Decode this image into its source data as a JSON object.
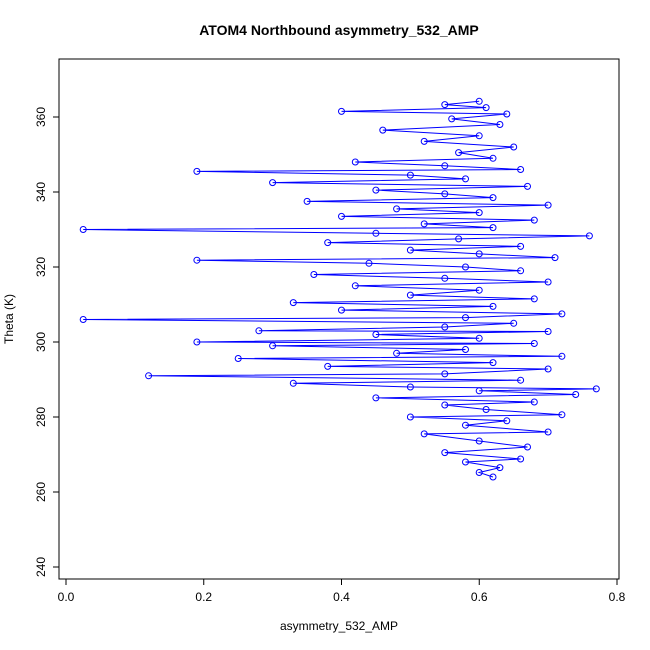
{
  "chart_data": {
    "type": "line",
    "title": "ATOM4 Northbound asymmetry_532_AMP",
    "xlabel": "asymmetry_532_AMP",
    "ylabel": "Theta (K)",
    "xlim": [
      0.0,
      0.8
    ],
    "ylim": [
      240,
      370
    ],
    "xticks": [
      0.0,
      0.2,
      0.4,
      0.6,
      0.8
    ],
    "yticks": [
      240,
      260,
      280,
      300,
      320,
      340,
      360
    ],
    "xtick_labels": [
      "0.0",
      "0.2",
      "0.4",
      "0.6",
      "0.8"
    ],
    "ytick_labels": [
      "240",
      "260",
      "280",
      "300",
      "320",
      "340",
      "360"
    ],
    "grid": false,
    "legend": "none",
    "series": [
      {
        "color": "#0000ff",
        "marker": "open-circle",
        "line": true,
        "points": [
          [
            0.62,
            264.0
          ],
          [
            0.6,
            265.2
          ],
          [
            0.63,
            266.5
          ],
          [
            0.58,
            268.0
          ],
          [
            0.66,
            268.8
          ],
          [
            0.55,
            270.5
          ],
          [
            0.67,
            272.0
          ],
          [
            0.6,
            273.6
          ],
          [
            0.52,
            275.5
          ],
          [
            0.7,
            276.0
          ],
          [
            0.58,
            277.8
          ],
          [
            0.64,
            279.0
          ],
          [
            0.5,
            280.0
          ],
          [
            0.72,
            280.6
          ],
          [
            0.61,
            282.0
          ],
          [
            0.55,
            283.2
          ],
          [
            0.68,
            284.0
          ],
          [
            0.45,
            285.1
          ],
          [
            0.74,
            286.0
          ],
          [
            0.6,
            287.0
          ],
          [
            0.77,
            287.5
          ],
          [
            0.5,
            288.0
          ],
          [
            0.33,
            289.0
          ],
          [
            0.66,
            289.8
          ],
          [
            0.12,
            291.0
          ],
          [
            0.55,
            291.5
          ],
          [
            0.7,
            292.8
          ],
          [
            0.38,
            293.5
          ],
          [
            0.62,
            294.5
          ],
          [
            0.25,
            295.6
          ],
          [
            0.72,
            296.2
          ],
          [
            0.48,
            297.0
          ],
          [
            0.58,
            298.0
          ],
          [
            0.3,
            299.0
          ],
          [
            0.68,
            299.6
          ],
          [
            0.19,
            300.0
          ],
          [
            0.6,
            301.0
          ],
          [
            0.45,
            302.0
          ],
          [
            0.7,
            302.8
          ],
          [
            0.28,
            303.0
          ],
          [
            0.55,
            304.0
          ],
          [
            0.65,
            305.0
          ],
          [
            0.025,
            306.0
          ],
          [
            0.58,
            306.5
          ],
          [
            0.72,
            307.5
          ],
          [
            0.4,
            308.5
          ],
          [
            0.62,
            309.5
          ],
          [
            0.33,
            310.5
          ],
          [
            0.68,
            311.5
          ],
          [
            0.5,
            312.5
          ],
          [
            0.6,
            313.8
          ],
          [
            0.42,
            315.0
          ],
          [
            0.7,
            316.0
          ],
          [
            0.55,
            317.0
          ],
          [
            0.36,
            318.0
          ],
          [
            0.66,
            319.0
          ],
          [
            0.58,
            320.0
          ],
          [
            0.44,
            321.0
          ],
          [
            0.19,
            321.8
          ],
          [
            0.71,
            322.5
          ],
          [
            0.6,
            323.5
          ],
          [
            0.5,
            324.5
          ],
          [
            0.66,
            325.5
          ],
          [
            0.38,
            326.5
          ],
          [
            0.57,
            327.5
          ],
          [
            0.76,
            328.3
          ],
          [
            0.45,
            329.0
          ],
          [
            0.025,
            330.0
          ],
          [
            0.62,
            330.5
          ],
          [
            0.52,
            331.5
          ],
          [
            0.68,
            332.5
          ],
          [
            0.4,
            333.5
          ],
          [
            0.6,
            334.5
          ],
          [
            0.48,
            335.5
          ],
          [
            0.7,
            336.5
          ],
          [
            0.35,
            337.5
          ],
          [
            0.62,
            338.5
          ],
          [
            0.55,
            339.5
          ],
          [
            0.45,
            340.5
          ],
          [
            0.67,
            341.5
          ],
          [
            0.3,
            342.5
          ],
          [
            0.58,
            343.5
          ],
          [
            0.5,
            344.5
          ],
          [
            0.19,
            345.5
          ],
          [
            0.66,
            346.0
          ],
          [
            0.55,
            347.0
          ],
          [
            0.42,
            348.0
          ],
          [
            0.62,
            349.0
          ],
          [
            0.57,
            350.5
          ],
          [
            0.65,
            352.0
          ],
          [
            0.52,
            353.5
          ],
          [
            0.6,
            355.0
          ],
          [
            0.46,
            356.5
          ],
          [
            0.63,
            358.0
          ],
          [
            0.56,
            359.5
          ],
          [
            0.64,
            360.8
          ],
          [
            0.4,
            361.5
          ],
          [
            0.61,
            362.5
          ],
          [
            0.55,
            363.3
          ],
          [
            0.6,
            364.2
          ]
        ]
      }
    ]
  }
}
